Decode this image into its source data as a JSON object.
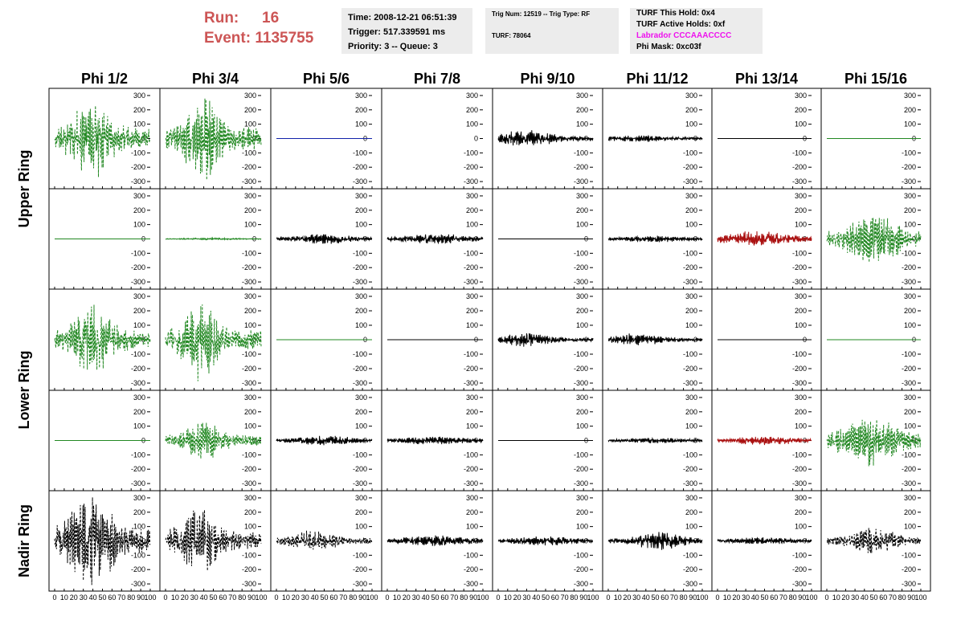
{
  "header": {
    "run_label": "Run:",
    "run_value": "16",
    "event_label": "Event:",
    "event_value": "1135755"
  },
  "info_box_1": {
    "time": "Time: 2008-12-21 06:51:39",
    "trigger": "Trigger: 517.339591 ms",
    "priority": "Priority: 3 -- Queue: 3"
  },
  "info_box_2": {
    "trig": "Trig Num: 12519 -- Trig Type: RF",
    "turf": "TURF: 78064"
  },
  "info_box_3": {
    "this_hold": "TURF This Hold: 0x4",
    "active_holds": "TURF Active Holds: 0xf",
    "labrador": "Labrador CCCAAACCCC",
    "phi_mask": "Phi Mask: 0xc03f"
  },
  "colors": {
    "run_text": "#cc5555",
    "labrador_text": "#ee11ee",
    "green_trace": "#228822",
    "black_trace": "#000000",
    "red_trace": "#aa1111",
    "blue_trace": "#1122aa",
    "info_bg": "#ececec"
  },
  "chart_data": {
    "type": "line",
    "column_titles": [
      "Phi 1/2",
      "Phi 3/4",
      "Phi 5/6",
      "Phi 7/8",
      "Phi 9/10",
      "Phi 11/12",
      "Phi 13/14",
      "Phi 15/16"
    ],
    "row_group_labels": [
      "Upper Ring",
      "Lower Ring",
      "Nadir Ring"
    ],
    "xlim": [
      0,
      100
    ],
    "ylim": [
      -350,
      350
    ],
    "y_ticks": [
      -300,
      -200,
      -100,
      0,
      100,
      200,
      300
    ],
    "x_ticks": [
      0,
      10,
      20,
      30,
      40,
      50,
      60,
      70,
      80,
      90,
      100
    ],
    "x_tick_labels": [
      "0",
      "10",
      "20",
      "30",
      "40",
      "50",
      "60",
      "70",
      "80",
      "90",
      "100"
    ],
    "panels": [
      [
        {
          "color": "green",
          "dashed": true,
          "amp": 230,
          "center": 38,
          "width": 22,
          "seed": 11
        },
        {
          "color": "green",
          "dashed": true,
          "amp": 250,
          "center": 38,
          "width": 18,
          "seed": 12
        },
        {
          "color": "blue",
          "dashed": false,
          "amp": 0,
          "center": 50,
          "width": 20,
          "seed": 13
        },
        {
          "color": "none",
          "dashed": false,
          "amp": 0,
          "center": 50,
          "width": 20,
          "seed": 14
        },
        {
          "color": "black",
          "dashed": false,
          "amp": 55,
          "center": 30,
          "width": 25,
          "seed": 15
        },
        {
          "color": "black",
          "dashed": false,
          "amp": 20,
          "center": 30,
          "width": 40,
          "seed": 16
        },
        {
          "color": "black",
          "dashed": false,
          "amp": 0,
          "center": 50,
          "width": 20,
          "seed": 17
        },
        {
          "color": "green",
          "dashed": false,
          "amp": 0,
          "center": 50,
          "width": 20,
          "seed": 18
        }
      ],
      [
        {
          "color": "green",
          "dashed": false,
          "amp": 0,
          "center": 50,
          "width": 20,
          "seed": 21
        },
        {
          "color": "green",
          "dashed": false,
          "amp": 5,
          "center": 50,
          "width": 40,
          "seed": 22
        },
        {
          "color": "black",
          "dashed": false,
          "amp": 30,
          "center": 50,
          "width": 30,
          "seed": 23
        },
        {
          "color": "black",
          "dashed": false,
          "amp": 28,
          "center": 50,
          "width": 40,
          "seed": 24
        },
        {
          "color": "black",
          "dashed": false,
          "amp": 0,
          "center": 50,
          "width": 20,
          "seed": 25
        },
        {
          "color": "black",
          "dashed": false,
          "amp": 18,
          "center": 50,
          "width": 40,
          "seed": 26
        },
        {
          "color": "red",
          "dashed": false,
          "amp": 45,
          "center": 40,
          "width": 35,
          "seed": 27
        },
        {
          "color": "green",
          "dashed": true,
          "amp": 140,
          "center": 50,
          "width": 30,
          "seed": 28
        }
      ],
      [
        {
          "color": "green",
          "dashed": true,
          "amp": 200,
          "center": 40,
          "width": 22,
          "seed": 31
        },
        {
          "color": "green",
          "dashed": true,
          "amp": 230,
          "center": 35,
          "width": 18,
          "seed": 32
        },
        {
          "color": "green",
          "dashed": false,
          "amp": 0,
          "center": 50,
          "width": 20,
          "seed": 33
        },
        {
          "color": "black",
          "dashed": false,
          "amp": 0,
          "center": 50,
          "width": 20,
          "seed": 34
        },
        {
          "color": "black",
          "dashed": false,
          "amp": 40,
          "center": 30,
          "width": 25,
          "seed": 35
        },
        {
          "color": "black",
          "dashed": false,
          "amp": 35,
          "center": 30,
          "width": 30,
          "seed": 36
        },
        {
          "color": "black",
          "dashed": false,
          "amp": 0,
          "center": 50,
          "width": 20,
          "seed": 37
        },
        {
          "color": "green",
          "dashed": false,
          "amp": 0,
          "center": 50,
          "width": 20,
          "seed": 38
        }
      ],
      [
        {
          "color": "green",
          "dashed": false,
          "amp": 0,
          "center": 50,
          "width": 20,
          "seed": 41
        },
        {
          "color": "green",
          "dashed": true,
          "amp": 120,
          "center": 40,
          "width": 20,
          "seed": 42
        },
        {
          "color": "black",
          "dashed": false,
          "amp": 30,
          "center": 50,
          "width": 30,
          "seed": 43
        },
        {
          "color": "black",
          "dashed": false,
          "amp": 22,
          "center": 50,
          "width": 45,
          "seed": 44
        },
        {
          "color": "black",
          "dashed": false,
          "amp": 0,
          "center": 50,
          "width": 20,
          "seed": 45
        },
        {
          "color": "black",
          "dashed": false,
          "amp": 15,
          "center": 50,
          "width": 40,
          "seed": 46
        },
        {
          "color": "red",
          "dashed": false,
          "amp": 25,
          "center": 50,
          "width": 40,
          "seed": 47
        },
        {
          "color": "green",
          "dashed": true,
          "amp": 160,
          "center": 45,
          "width": 28,
          "seed": 48
        }
      ],
      [
        {
          "color": "black",
          "dashed": true,
          "amp": 260,
          "center": 38,
          "width": 25,
          "seed": 51
        },
        {
          "color": "black",
          "dashed": true,
          "amp": 200,
          "center": 35,
          "width": 20,
          "seed": 52
        },
        {
          "color": "black",
          "dashed": true,
          "amp": 60,
          "center": 40,
          "width": 25,
          "seed": 53
        },
        {
          "color": "black",
          "dashed": false,
          "amp": 30,
          "center": 50,
          "width": 40,
          "seed": 54
        },
        {
          "color": "black",
          "dashed": false,
          "amp": 25,
          "center": 50,
          "width": 40,
          "seed": 55
        },
        {
          "color": "black",
          "dashed": false,
          "amp": 55,
          "center": 55,
          "width": 25,
          "seed": 56
        },
        {
          "color": "black",
          "dashed": false,
          "amp": 20,
          "center": 50,
          "width": 40,
          "seed": 57
        },
        {
          "color": "black",
          "dashed": true,
          "amp": 75,
          "center": 50,
          "width": 25,
          "seed": 58
        }
      ]
    ]
  }
}
